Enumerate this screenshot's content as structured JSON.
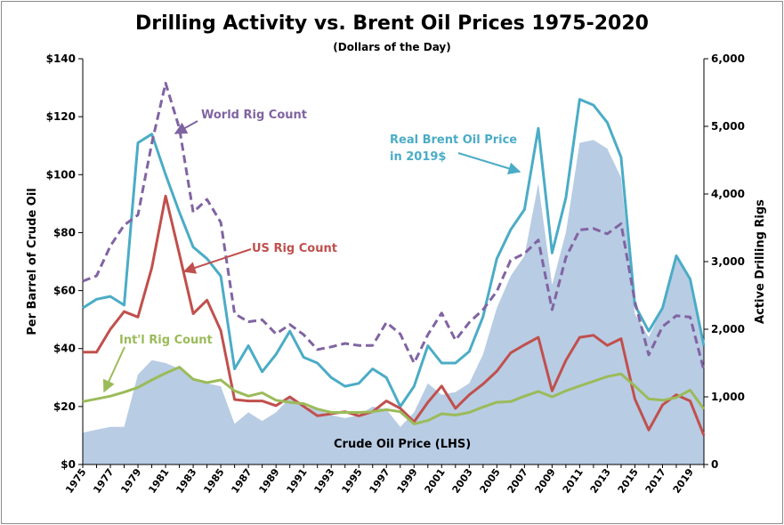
{
  "chart_data": {
    "type": "line",
    "title": "Drilling Activity vs. Brent Oil Prices 1975-2020",
    "subtitle": "(Dollars of the Day)",
    "ylabel_left": "Per Barrel of Crude Oil",
    "ylabel_right": "Active Drilling Rigs",
    "ylim_left": [
      0,
      140
    ],
    "ylim_right": [
      0,
      6000
    ],
    "yticks_left": [
      "$0",
      "$20",
      "$40",
      "$60",
      "$80",
      "$100",
      "$120",
      "$140"
    ],
    "yticks_right": [
      "0",
      "1,000",
      "2,000",
      "3,000",
      "4,000",
      "5,000",
      "6,000"
    ],
    "grid": false,
    "x": [
      1975,
      1976,
      1977,
      1978,
      1979,
      1980,
      1981,
      1982,
      1983,
      1984,
      1985,
      1986,
      1987,
      1988,
      1989,
      1990,
      1991,
      1992,
      1993,
      1994,
      1995,
      1996,
      1997,
      1998,
      1999,
      2000,
      2001,
      2002,
      2003,
      2004,
      2005,
      2006,
      2007,
      2008,
      2009,
      2010,
      2011,
      2012,
      2013,
      2014,
      2015,
      2016,
      2017,
      2018,
      2019,
      2020
    ],
    "xtick_labels": [
      "1975",
      "1977",
      "1979",
      "1981",
      "1983",
      "1985",
      "1987",
      "1989",
      "1991",
      "1993",
      "1995",
      "1997",
      "1999",
      "2001",
      "2003",
      "2005",
      "2007",
      "2009",
      "2011",
      "2013",
      "2015",
      "2017",
      "2019"
    ],
    "series": [
      {
        "name": "Crude Oil Price (LHS)",
        "kind": "area",
        "axis": "left",
        "color": "#b8cce4",
        "values": [
          11,
          12,
          13,
          13,
          31,
          36,
          35,
          33,
          29,
          28,
          27,
          14,
          18,
          15,
          18,
          23,
          20,
          19,
          17,
          16,
          17,
          20,
          19,
          13,
          18,
          28,
          24,
          25,
          28,
          38,
          54,
          65,
          72,
          97,
          62,
          80,
          111,
          112,
          109,
          99,
          52,
          44,
          54,
          71,
          64,
          42
        ]
      },
      {
        "name": "Real Brent Oil Price in 2019$",
        "kind": "line",
        "axis": "left",
        "color": "#4bacc6",
        "dash": false,
        "values": [
          54,
          57,
          58,
          55,
          111,
          114,
          100,
          87,
          75,
          71,
          65,
          33,
          41,
          32,
          38,
          46,
          37,
          35,
          30,
          27,
          28,
          33,
          30,
          20,
          27,
          41,
          35,
          35,
          39,
          51,
          71,
          81,
          88,
          116,
          73,
          92,
          126,
          124,
          118,
          106,
          55,
          46,
          54,
          72,
          64,
          41
        ]
      },
      {
        "name": "World Rig Count",
        "kind": "line",
        "axis": "right",
        "color": "#8064a2",
        "dash": true,
        "values": [
          2710,
          2790,
          3230,
          3540,
          3690,
          4750,
          5640,
          4970,
          3730,
          3920,
          3580,
          2230,
          2110,
          2140,
          1930,
          2070,
          1920,
          1700,
          1740,
          1790,
          1760,
          1760,
          2100,
          1930,
          1500,
          1920,
          2240,
          1840,
          2100,
          2290,
          2560,
          3020,
          3120,
          3320,
          2290,
          3060,
          3470,
          3490,
          3410,
          3560,
          2410,
          1620,
          2040,
          2200,
          2180,
          1390
        ]
      },
      {
        "name": "US Rig Count",
        "kind": "line",
        "axis": "right",
        "color": "#c0504d",
        "dash": false,
        "values": [
          1660,
          1660,
          2000,
          2260,
          2180,
          2910,
          3970,
          3110,
          2230,
          2430,
          1980,
          960,
          940,
          940,
          870,
          1000,
          860,
          720,
          750,
          780,
          720,
          780,
          940,
          830,
          630,
          920,
          1160,
          830,
          1030,
          1190,
          1380,
          1650,
          1770,
          1880,
          1090,
          1540,
          1880,
          1910,
          1760,
          1860,
          970,
          510,
          880,
          1030,
          940,
          430
        ]
      },
      {
        "name": "Int'l Rig Count",
        "kind": "line",
        "axis": "right",
        "color": "#9bbb59",
        "dash": false,
        "values": [
          930,
          970,
          1010,
          1070,
          1140,
          1250,
          1350,
          1440,
          1260,
          1210,
          1250,
          1090,
          1010,
          1060,
          950,
          920,
          900,
          820,
          770,
          770,
          770,
          780,
          810,
          780,
          600,
          650,
          750,
          730,
          770,
          850,
          920,
          930,
          1010,
          1080,
          1000,
          1090,
          1160,
          1230,
          1300,
          1340,
          1160,
          970,
          950,
          990,
          1100,
          820
        ]
      }
    ],
    "annotations": [
      {
        "text": "World Rig Count",
        "color": "#8064a2"
      },
      {
        "text": "Real Brent Oil Price",
        "text2": "in 2019$",
        "color": "#4bacc6"
      },
      {
        "text": "US Rig Count",
        "color": "#c0504d"
      },
      {
        "text": "Int'l Rig Count",
        "color": "#9bbb59"
      },
      {
        "text": "Crude Oil Price (LHS)",
        "color": "#000000"
      }
    ]
  }
}
